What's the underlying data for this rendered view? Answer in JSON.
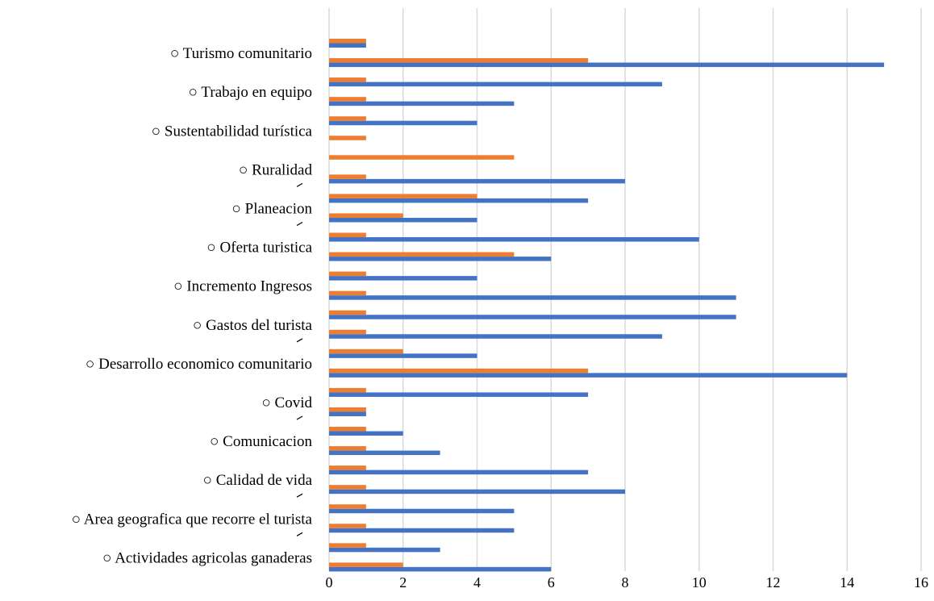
{
  "chart_data": {
    "type": "bar",
    "orientation": "horizontal",
    "title": "",
    "xlabel": "",
    "ylabel": "",
    "xlim": [
      0,
      16
    ],
    "x_ticks": [
      0,
      2,
      4,
      6,
      8,
      10,
      12,
      14,
      16
    ],
    "grid": true,
    "legend": "none",
    "category_labels": [
      {
        "label": "○ Turismo comunitario",
        "slot": 1
      },
      {
        "label": "○ Trabajo en equipo",
        "slot": 3
      },
      {
        "label": "○ Sustentabilidad turística",
        "slot": 5
      },
      {
        "label": "○ Ruralidad",
        "slot": 7
      },
      {
        "label": "○ Planeacion",
        "slot": 9
      },
      {
        "label": "○ Oferta turistica",
        "slot": 11
      },
      {
        "label": "○ Incremento Ingresos",
        "slot": 13
      },
      {
        "label": "○ Gastos del turista",
        "slot": 15
      },
      {
        "label": "○ Desarrollo economico comunitario",
        "slot": 17
      },
      {
        "label": "○ Covid",
        "slot": 19
      },
      {
        "label": "○ Comunicacion",
        "slot": 21
      },
      {
        "label": "○ Calidad de vida",
        "slot": 23
      },
      {
        "label": "○ Area geografica que recorre el turista",
        "slot": 25
      },
      {
        "label": "○ Actividades agricolas ganaderas",
        "slot": 27
      }
    ],
    "accent_marks": [
      8,
      10,
      16,
      20,
      24,
      26
    ],
    "series": [
      {
        "color": "#4472c4",
        "values": [
          1,
          15,
          9,
          5,
          4,
          0,
          0,
          8,
          7,
          4,
          10,
          6,
          4,
          11,
          11,
          9,
          4,
          14,
          7,
          1,
          2,
          3,
          7,
          8,
          5,
          5,
          3,
          6
        ]
      },
      {
        "color": "#ed7d31",
        "values": [
          1,
          7,
          1,
          1,
          1,
          1,
          5,
          1,
          4,
          2,
          1,
          5,
          1,
          1,
          1,
          1,
          2,
          7,
          1,
          1,
          1,
          1,
          1,
          1,
          1,
          1,
          1,
          2
        ]
      }
    ]
  }
}
